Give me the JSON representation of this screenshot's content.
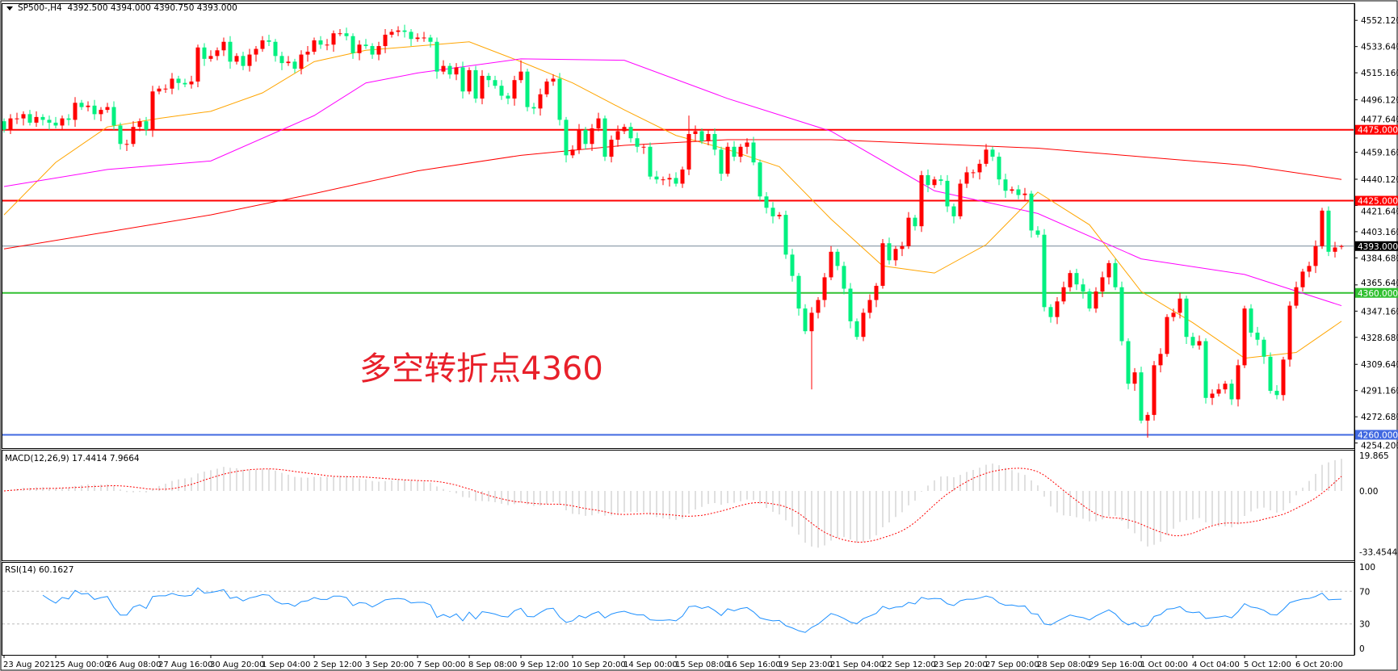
{
  "header": {
    "symbol": "SP500-,H4",
    "ohlc": "4392.500 4394.000 4390.750 4393.000"
  },
  "annotation": "多空转折点4360",
  "macd": {
    "label": "MACD(12,26,9) 17.4414 7.9664",
    "axis": [
      {
        "v": 19.865,
        "t": "19.865"
      },
      {
        "v": 0,
        "t": "0.00"
      },
      {
        "v": -33.4544,
        "t": "-33.4544"
      }
    ]
  },
  "rsi": {
    "label": "RSI(14) 60.1627",
    "axis": [
      {
        "v": 100,
        "t": "100"
      },
      {
        "v": 70,
        "t": "70"
      },
      {
        "v": 30,
        "t": "30"
      },
      {
        "v": 0,
        "t": "0"
      }
    ]
  },
  "colors": {
    "up": "#ff0000",
    "down": "#00f080",
    "ma_fast": "#ffa500",
    "ma_mid": "#ff00ff",
    "ma_slow": "#ff0000",
    "macd_hist": "#c0c0c0",
    "macd_signal": "#ff0000",
    "rsi": "#1e90ff",
    "bid_line": "#778899"
  },
  "chart_data": {
    "type": "candlestick",
    "symbol": "SP500-",
    "timeframe": "H4",
    "ylim": [
      4250.7,
      4556
    ],
    "first_open": 4481,
    "closes": [
      4475,
      4483,
      4483,
      4486,
      4480,
      4484,
      4482,
      4480,
      4478,
      4483,
      4482,
      4494,
      4491,
      4492,
      4486,
      4489,
      4491,
      4478,
      4465,
      4465,
      4477,
      4481,
      4475,
      4502,
      4504,
      4504,
      4511,
      4508,
      4507,
      4509,
      4533,
      4525,
      4527,
      4531,
      4537,
      4523,
      4527,
      4520,
      4528,
      4532,
      4538,
      4537,
      4527,
      4522,
      4523,
      4518,
      4528,
      4530,
      4538,
      4535,
      4535,
      4543,
      4543,
      4541,
      4529,
      4535,
      4534,
      4528,
      4534,
      4542,
      4544,
      4545,
      4544,
      4539,
      4540,
      4540,
      4537,
      4516,
      4520,
      4514,
      4519,
      4502,
      4517,
      4497,
      4513,
      4510,
      4506,
      4499,
      4497,
      4510,
      4516,
      4491,
      4490,
      4500,
      4509,
      4511,
      4482,
      4457,
      4461,
      4475,
      4465,
      4476,
      4483,
      4456,
      4468,
      4474,
      4477,
      4469,
      4463,
      4463,
      4442,
      4440,
      4440,
      4441,
      4437,
      4447,
      4472,
      4474,
      4467,
      4472,
      4461,
      4444,
      4463,
      4456,
      4463,
      4466,
      4452,
      4428,
      4420,
      4414,
      4415,
      4387,
      4372,
      4349,
      4333,
      4346,
      4355,
      4371,
      4389,
      4379,
      4363,
      4340,
      4329,
      4346,
      4355,
      4365,
      4395,
      4383,
      4391,
      4393,
      4413,
      4407,
      4443,
      4436,
      4440,
      4439,
      4421,
      4414,
      4437,
      4445,
      4445,
      4451,
      4461,
      4456,
      4440,
      4432,
      4433,
      4429,
      4430,
      4404,
      4401,
      4350,
      4343,
      4354,
      4364,
      4374,
      4366,
      4361,
      4349,
      4361,
      4371,
      4381,
      4364,
      4326,
      4296,
      4304,
      4270,
      4274,
      4309,
      4317,
      4343,
      4346,
      4356,
      4329,
      4323,
      4326,
      4286,
      4289,
      4292,
      4296,
      4285,
      4309,
      4349,
      4332,
      4327,
      4315,
      4291,
      4288,
      4313,
      4351,
      4364,
      4375,
      4379,
      4393,
      4418,
      4389,
      4392,
      4393
    ],
    "last_bar": {
      "open": 4392.5,
      "high": 4394.0,
      "low": 4390.75,
      "close": 4393.0
    },
    "wick_extremes": [
      {
        "bar": 125,
        "low": 4292
      },
      {
        "bar": 177,
        "low": 4258
      },
      {
        "bar": 106,
        "high": 4485
      },
      {
        "bar": 80,
        "high": 4524
      }
    ],
    "moving_averages": [
      {
        "color": "#ffa500",
        "points": [
          [
            0,
            4415
          ],
          [
            8,
            4452
          ],
          [
            16,
            4477
          ],
          [
            24,
            4483
          ],
          [
            32,
            4488
          ],
          [
            40,
            4501
          ],
          [
            48,
            4523
          ],
          [
            56,
            4531
          ],
          [
            64,
            4534
          ],
          [
            72,
            4537
          ],
          [
            80,
            4523
          ],
          [
            88,
            4508
          ],
          [
            96,
            4489
          ],
          [
            104,
            4471
          ],
          [
            112,
            4461
          ],
          [
            120,
            4449
          ],
          [
            128,
            4412
          ],
          [
            136,
            4379
          ],
          [
            144,
            4374
          ],
          [
            152,
            4394
          ],
          [
            160,
            4431
          ],
          [
            168,
            4408
          ],
          [
            176,
            4361
          ],
          [
            184,
            4339
          ],
          [
            192,
            4314
          ],
          [
            200,
            4318
          ],
          [
            207,
            4340
          ]
        ]
      },
      {
        "color": "#ff00ff",
        "points": [
          [
            0,
            4435
          ],
          [
            16,
            4447
          ],
          [
            32,
            4453
          ],
          [
            48,
            4485
          ],
          [
            56,
            4508
          ],
          [
            64,
            4515
          ],
          [
            80,
            4525
          ],
          [
            96,
            4524
          ],
          [
            112,
            4497
          ],
          [
            128,
            4474
          ],
          [
            144,
            4432
          ],
          [
            160,
            4416
          ],
          [
            176,
            4384
          ],
          [
            192,
            4373
          ],
          [
            207,
            4351
          ]
        ]
      },
      {
        "color": "#ff0000",
        "points": [
          [
            0,
            4391
          ],
          [
            16,
            4403
          ],
          [
            32,
            4415
          ],
          [
            48,
            4430
          ],
          [
            64,
            4446
          ],
          [
            80,
            4457
          ],
          [
            96,
            4464
          ],
          [
            112,
            4468
          ],
          [
            128,
            4468
          ],
          [
            144,
            4465
          ],
          [
            160,
            4462
          ],
          [
            176,
            4456
          ],
          [
            192,
            4450
          ],
          [
            207,
            4440
          ]
        ]
      }
    ],
    "levels": [
      {
        "price": 4475,
        "label": "4475.000",
        "color": "#ff0000",
        "text_color": "#ffffff"
      },
      {
        "price": 4425,
        "label": "4425.000",
        "color": "#ff0000",
        "text_color": "#ffffff"
      },
      {
        "price": 4393,
        "label": "4393.000",
        "color": "#000000",
        "text_color": "#ffffff",
        "line_color": "#778899"
      },
      {
        "price": 4360,
        "label": "4360.000",
        "color": "#32c032",
        "text_color": "#ffffff"
      },
      {
        "price": 4260,
        "label": "4260.000",
        "color": "#4169e1",
        "text_color": "#ffffff"
      }
    ],
    "y_ticks": [
      "4552.120",
      "4533.640",
      "4515.160",
      "4496.120",
      "4477.640",
      "4459.160",
      "4440.120",
      "4421.640",
      "4403.160",
      "4384.680",
      "4365.640",
      "4347.160",
      "4328.680",
      "4309.640",
      "4291.160",
      "4272.680",
      "4254.200"
    ],
    "x_labels": [
      "23 Aug 2021",
      "25 Aug 00:00",
      "26 Aug 08:00",
      "27 Aug 16:00",
      "30 Aug 20:00",
      "1 Sep 04:00",
      "2 Sep 12:00",
      "3 Sep 20:00",
      "7 Sep 00:00",
      "8 Sep 08:00",
      "9 Sep 12:00",
      "10 Sep 20:00",
      "14 Sep 00:00",
      "15 Sep 08:00",
      "16 Sep 16:00",
      "19 Sep 23:00",
      "21 Sep 04:00",
      "22 Sep 12:00",
      "23 Sep 20:00",
      "27 Sep 00:00",
      "28 Sep 08:00",
      "29 Sep 16:00",
      "1 Oct 00:00",
      "4 Oct 04:00",
      "5 Oct 12:00",
      "6 Oct 20:00"
    ],
    "x_label_every_bars": 8,
    "rsi_levels": [
      70,
      30
    ]
  }
}
